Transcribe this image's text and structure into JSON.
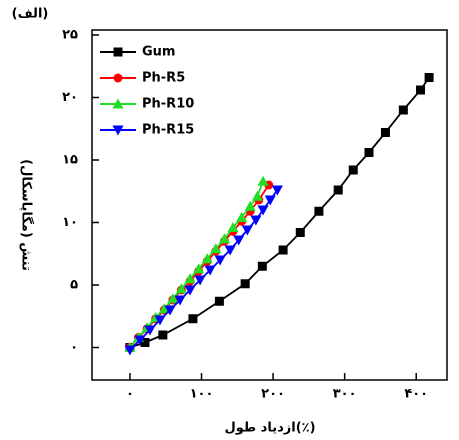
{
  "chart_data": {
    "type": "line",
    "title": "(الف)",
    "x_label": "ازدیاد طول(٪)",
    "y_label": "تنش (مگاپاسکال)",
    "xlim": [
      -53,
      443
    ],
    "ylim": [
      -2.6,
      25.4
    ],
    "xticks": [
      {
        "value": 0,
        "label": "۰"
      },
      {
        "value": 100,
        "label": "۱۰۰"
      },
      {
        "value": 200,
        "label": "۲۰۰"
      },
      {
        "value": 300,
        "label": "۳۰۰"
      },
      {
        "value": 400,
        "label": "۴۰۰"
      }
    ],
    "yticks": [
      {
        "value": 0,
        "label": "۰"
      },
      {
        "value": 5,
        "label": "۵"
      },
      {
        "value": 10,
        "label": "۱۰"
      },
      {
        "value": 15,
        "label": "۱۵"
      },
      {
        "value": 20,
        "label": "۲۰"
      },
      {
        "value": 25,
        "label": "۲۵"
      }
    ],
    "legend": "upper left",
    "series": [
      {
        "name": "Gum",
        "color": "#000000",
        "marker": "square",
        "x": [
          0,
          21,
          46,
          88,
          125,
          161,
          185,
          214,
          238,
          264,
          291,
          312,
          334,
          357,
          382,
          406,
          418
        ],
        "values": [
          0,
          0.4,
          1.0,
          2.3,
          3.7,
          5.1,
          6.5,
          7.8,
          9.2,
          10.9,
          12.6,
          14.2,
          15.6,
          17.2,
          19.0,
          20.6,
          21.6
        ]
      },
      {
        "name": "Ph-R5",
        "color": "#ff0000",
        "marker": "circle",
        "x": [
          0,
          12,
          24,
          36,
          48,
          60,
          72,
          84,
          96,
          108,
          120,
          132,
          144,
          156,
          168,
          180,
          194
        ],
        "values": [
          0,
          0.8,
          1.5,
          2.3,
          3.0,
          3.8,
          4.6,
          5.3,
          6.1,
          6.9,
          7.7,
          8.5,
          9.3,
          10.1,
          10.9,
          11.8,
          13.0
        ]
      },
      {
        "name": "Ph-R10",
        "color": "#22dd22",
        "marker": "triangle-up",
        "x": [
          0,
          12,
          24,
          36,
          48,
          60,
          72,
          84,
          96,
          108,
          120,
          132,
          144,
          156,
          168,
          178,
          186
        ],
        "values": [
          0,
          0.8,
          1.6,
          2.4,
          3.1,
          3.9,
          4.7,
          5.5,
          6.3,
          7.1,
          7.9,
          8.7,
          9.6,
          10.4,
          11.3,
          12.1,
          13.3
        ]
      },
      {
        "name": "Ph-R15",
        "color": "#0000ff",
        "marker": "triangle-down",
        "x": [
          0,
          14,
          28,
          42,
          56,
          70,
          84,
          98,
          112,
          126,
          140,
          152,
          164,
          176,
          186,
          196,
          206
        ],
        "values": [
          -0.2,
          0.6,
          1.4,
          2.2,
          3.0,
          3.8,
          4.6,
          5.4,
          6.2,
          7.0,
          7.8,
          8.6,
          9.4,
          10.2,
          11.0,
          11.8,
          12.6
        ]
      }
    ]
  }
}
